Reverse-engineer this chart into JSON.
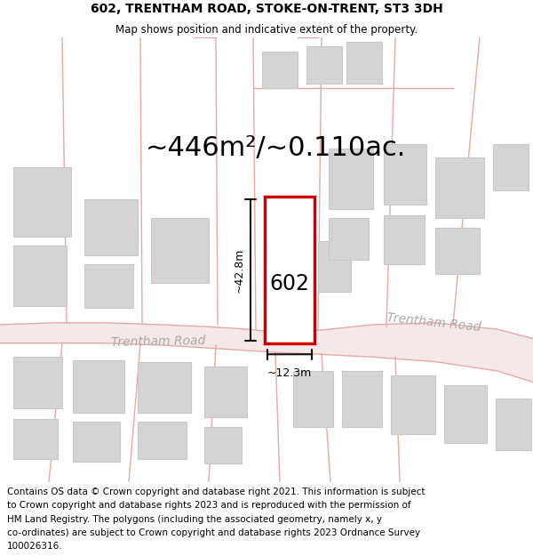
{
  "title_line1": "602, TRENTHAM ROAD, STOKE-ON-TRENT, ST3 3DH",
  "title_line2": "Map shows position and indicative extent of the property.",
  "area_text": "~446m²/~0.110ac.",
  "label_602": "602",
  "dim_height": "~42.8m",
  "dim_width": "~12.3m",
  "road_label_left": "Trentham Road",
  "road_label_right": "Trentham Road",
  "footer_lines": [
    "Contains OS data © Crown copyright and database right 2021. This information is subject",
    "to Crown copyright and database rights 2023 and is reproduced with the permission of",
    "HM Land Registry. The polygons (including the associated geometry, namely x, y",
    "co-ordinates) are subject to Crown copyright and database rights 2023 Ordnance Survey",
    "100026316."
  ],
  "map_bg": "#faf5f5",
  "road_color": "#e8a8a8",
  "road_fill": "#f5e8e8",
  "building_color": "#d4d4d4",
  "building_edge": "#c8c8c8",
  "plot_color": "#ffffff",
  "plot_edge": "#cc0000",
  "dim_line_color": "#111111",
  "title_fontsize": 10,
  "subtitle_fontsize": 8.5,
  "area_fontsize": 22,
  "label_fontsize": 17,
  "road_fontsize": 10,
  "footer_fontsize": 7.5
}
